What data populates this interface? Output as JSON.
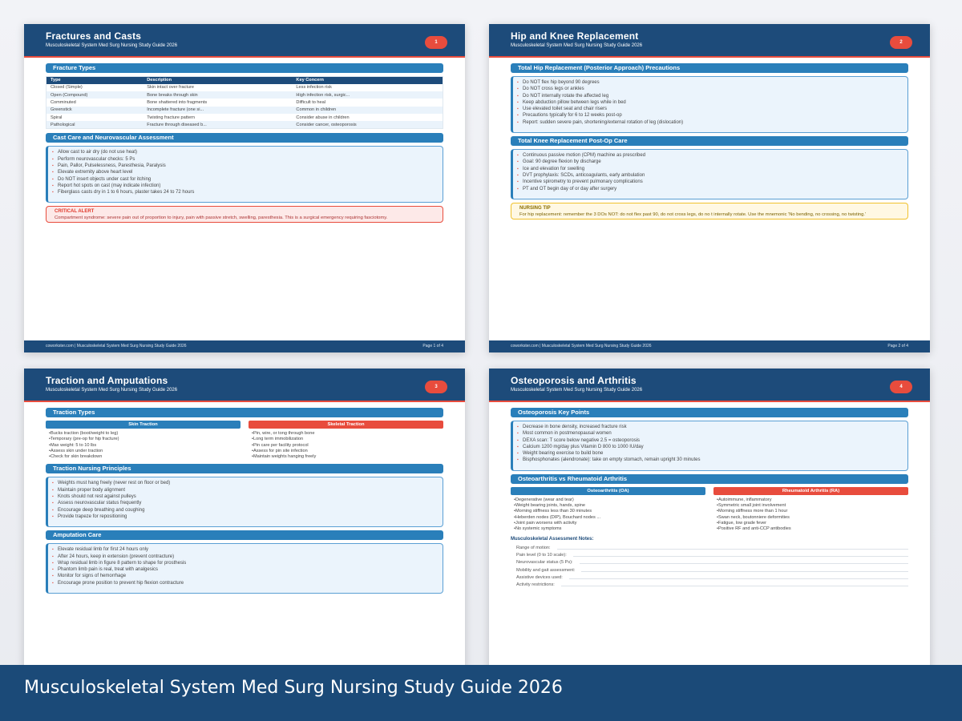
{
  "doc_title": "Musculoskeletal System Med Surg Nursing Study Guide 2026",
  "footer_left": "coworkster.com | Musculoskeletal System Med Surg Nursing Study Guide 2026",
  "colors": {
    "header": "#1d4b7a",
    "section": "#2a7fba",
    "accent": "#e84c3d",
    "tip": "#f0c22e"
  },
  "pages": [
    {
      "title": "Fractures and Casts",
      "badge": "1",
      "footer_right": "Page 1 of 4",
      "sec1": "Fracture Types",
      "table": {
        "headers": [
          "Type",
          "Description",
          "Key Concern"
        ],
        "rows": [
          [
            "Closed (Simple)",
            "Skin intact over fracture",
            "Less infection risk"
          ],
          [
            "Open (Compound)",
            "Bone breaks through skin",
            "High infection risk, surgic..."
          ],
          [
            "Comminuted",
            "Bone shattered into fragments",
            "Difficult to heal"
          ],
          [
            "Greenstick",
            "Incomplete fracture (one si...",
            "Common in children"
          ],
          [
            "Spiral",
            "Twisting fracture pattern",
            "Consider abuse in children"
          ],
          [
            "Pathological",
            "Fracture through diseased b...",
            "Consider cancer, osteoporosis"
          ]
        ]
      },
      "sec2": "Cast Care and Neurovascular Assessment",
      "list2": [
        "Allow cast to air dry (do not use heat)",
        "Perform neurovascular checks: 5 Ps",
        "Pain, Pallor, Pulselessness, Paresthesia, Paralysis",
        "Elevate extremity above heart level",
        "Do NOT insert objects under cast for itching",
        "Report hot spots on cast (may indicate infection)",
        "Fiberglass casts dry in 1 to 6 hours, plaster takes 24 to 72 hours"
      ],
      "alert_title": "CRITICAL ALERT",
      "alert_text": "Compartment syndrome: severe pain out of proportion to injury, pain with passive stretch, swelling, paresthesia. This is a surgical emergency requiring fasciotomy."
    },
    {
      "title": "Hip and Knee Replacement",
      "badge": "2",
      "footer_right": "Page 2 of 4",
      "sec1": "Total Hip Replacement (Posterior Approach) Precautions",
      "list1": [
        "Do NOT flex hip beyond 90 degrees",
        "Do NOT cross legs or ankles",
        "Do NOT internally rotate the affected leg",
        "Keep abduction pillow between legs while in bed",
        "Use elevated toilet seat and chair risers",
        "Precautions typically for 6 to 12 weeks post-op",
        "Report: sudden severe pain, shortening/external rotation of leg (dislocation)"
      ],
      "sec2": "Total Knee Replacement Post-Op Care",
      "list2": [
        "Continuous passive motion (CPM) machine as prescribed",
        "Goal: 90 degree flexion by discharge",
        "Ice and elevation for swelling",
        "DVT prophylaxis: SCDs, anticoagulants, early ambulation",
        "Incentive spirometry to prevent pulmonary complications",
        "PT and OT begin day of or day after surgery"
      ],
      "tip_title": "NURSING TIP",
      "tip_text": "For hip replacement: remember the 3 DOs NOT: do not flex past 90, do not cross legs, do no t internally rotate. Use the mnemonic 'No bending, no crossing, no twisting.'"
    },
    {
      "title": "Traction and Amputations",
      "badge": "3",
      "sec1": "Traction Types",
      "colA": {
        "title": "Skin Traction",
        "items": [
          "Bucks traction (boot/weight to leg)",
          "Temporary (pre-op for hip fracture)",
          "Max weight: 5 to 10 lbs",
          "Assess skin under traction",
          "Check for skin breakdown"
        ]
      },
      "colB": {
        "title": "Skeletal Traction",
        "items": [
          "Pin, wire, or tong through bone",
          "Long term immobilization",
          "Pin care per facility protocol",
          "Assess for pin site infection",
          "Maintain weights hanging freely"
        ]
      },
      "sec2": "Traction Nursing Principles",
      "list2": [
        "Weights must hang freely (never rest on floor or bed)",
        "Maintain proper body alignment",
        "Knots should not rest against pulleys",
        "Assess neurovascular status frequently",
        "Encourage deep breathing and coughing",
        "Provide trapeze for repositioning"
      ],
      "sec3": "Amputation Care",
      "list3": [
        "Elevate residual limb for first 24 hours only",
        "After 24 hours, keep in extension (prevent contracture)",
        "Wrap residual limb in figure 8 pattern to shape for prosthesis",
        "Phantom limb pain is real, treat with analgesics",
        "Monitor for signs of hemorrhage",
        "Encourage prone position to prevent hip flexion contracture"
      ]
    },
    {
      "title": "Osteoporosis and Arthritis",
      "badge": "4",
      "sec1": "Osteoporosis Key Points",
      "list1": [
        "Decrease in bone density, increased fracture risk",
        "Most common in postmenopausal women",
        "DEXA scan: T score below negative 2.5 = osteoporosis",
        "Calcium 1200 mg/day plus Vitamin D 800 to 1000 IU/day",
        "Weight bearing exercise to build bone",
        "Bisphosphonates (alendronate): take on empty stomach, remain upright 30 minutes"
      ],
      "sec2": "Osteoarthritis vs Rheumatoid Arthritis",
      "colA": {
        "title": "Osteoarthritis (OA)",
        "items": [
          "Degenerative (wear and tear)",
          "Weight bearing joints, hands, spine",
          "Morning stiffness less than 30 minutes",
          "Heberden nodes (DIP), Bouchard nodes ...",
          "Joint pain worsens with activity",
          "No systemic symptoms"
        ]
      },
      "colB": {
        "title": "Rheumatoid Arthritis (RA)",
        "items": [
          "Autoimmune, inflammatory",
          "Symmetric small joint involvement",
          "Morning stiffness more than 1 hour",
          "Swan neck, boutonniere deformities",
          "Fatigue, low grade fever",
          "Positive RF and anti-CCP antibodies"
        ]
      },
      "notes_title": "Musculoskeletal Assessment Notes:",
      "notes": [
        "Range of motion:",
        "Pain level (0 to 10 scale):",
        "Neurovascular status (5 Ps):",
        "Mobility and gait assessment:",
        "Assistive devices used:",
        "Activity restrictions:"
      ]
    }
  ]
}
